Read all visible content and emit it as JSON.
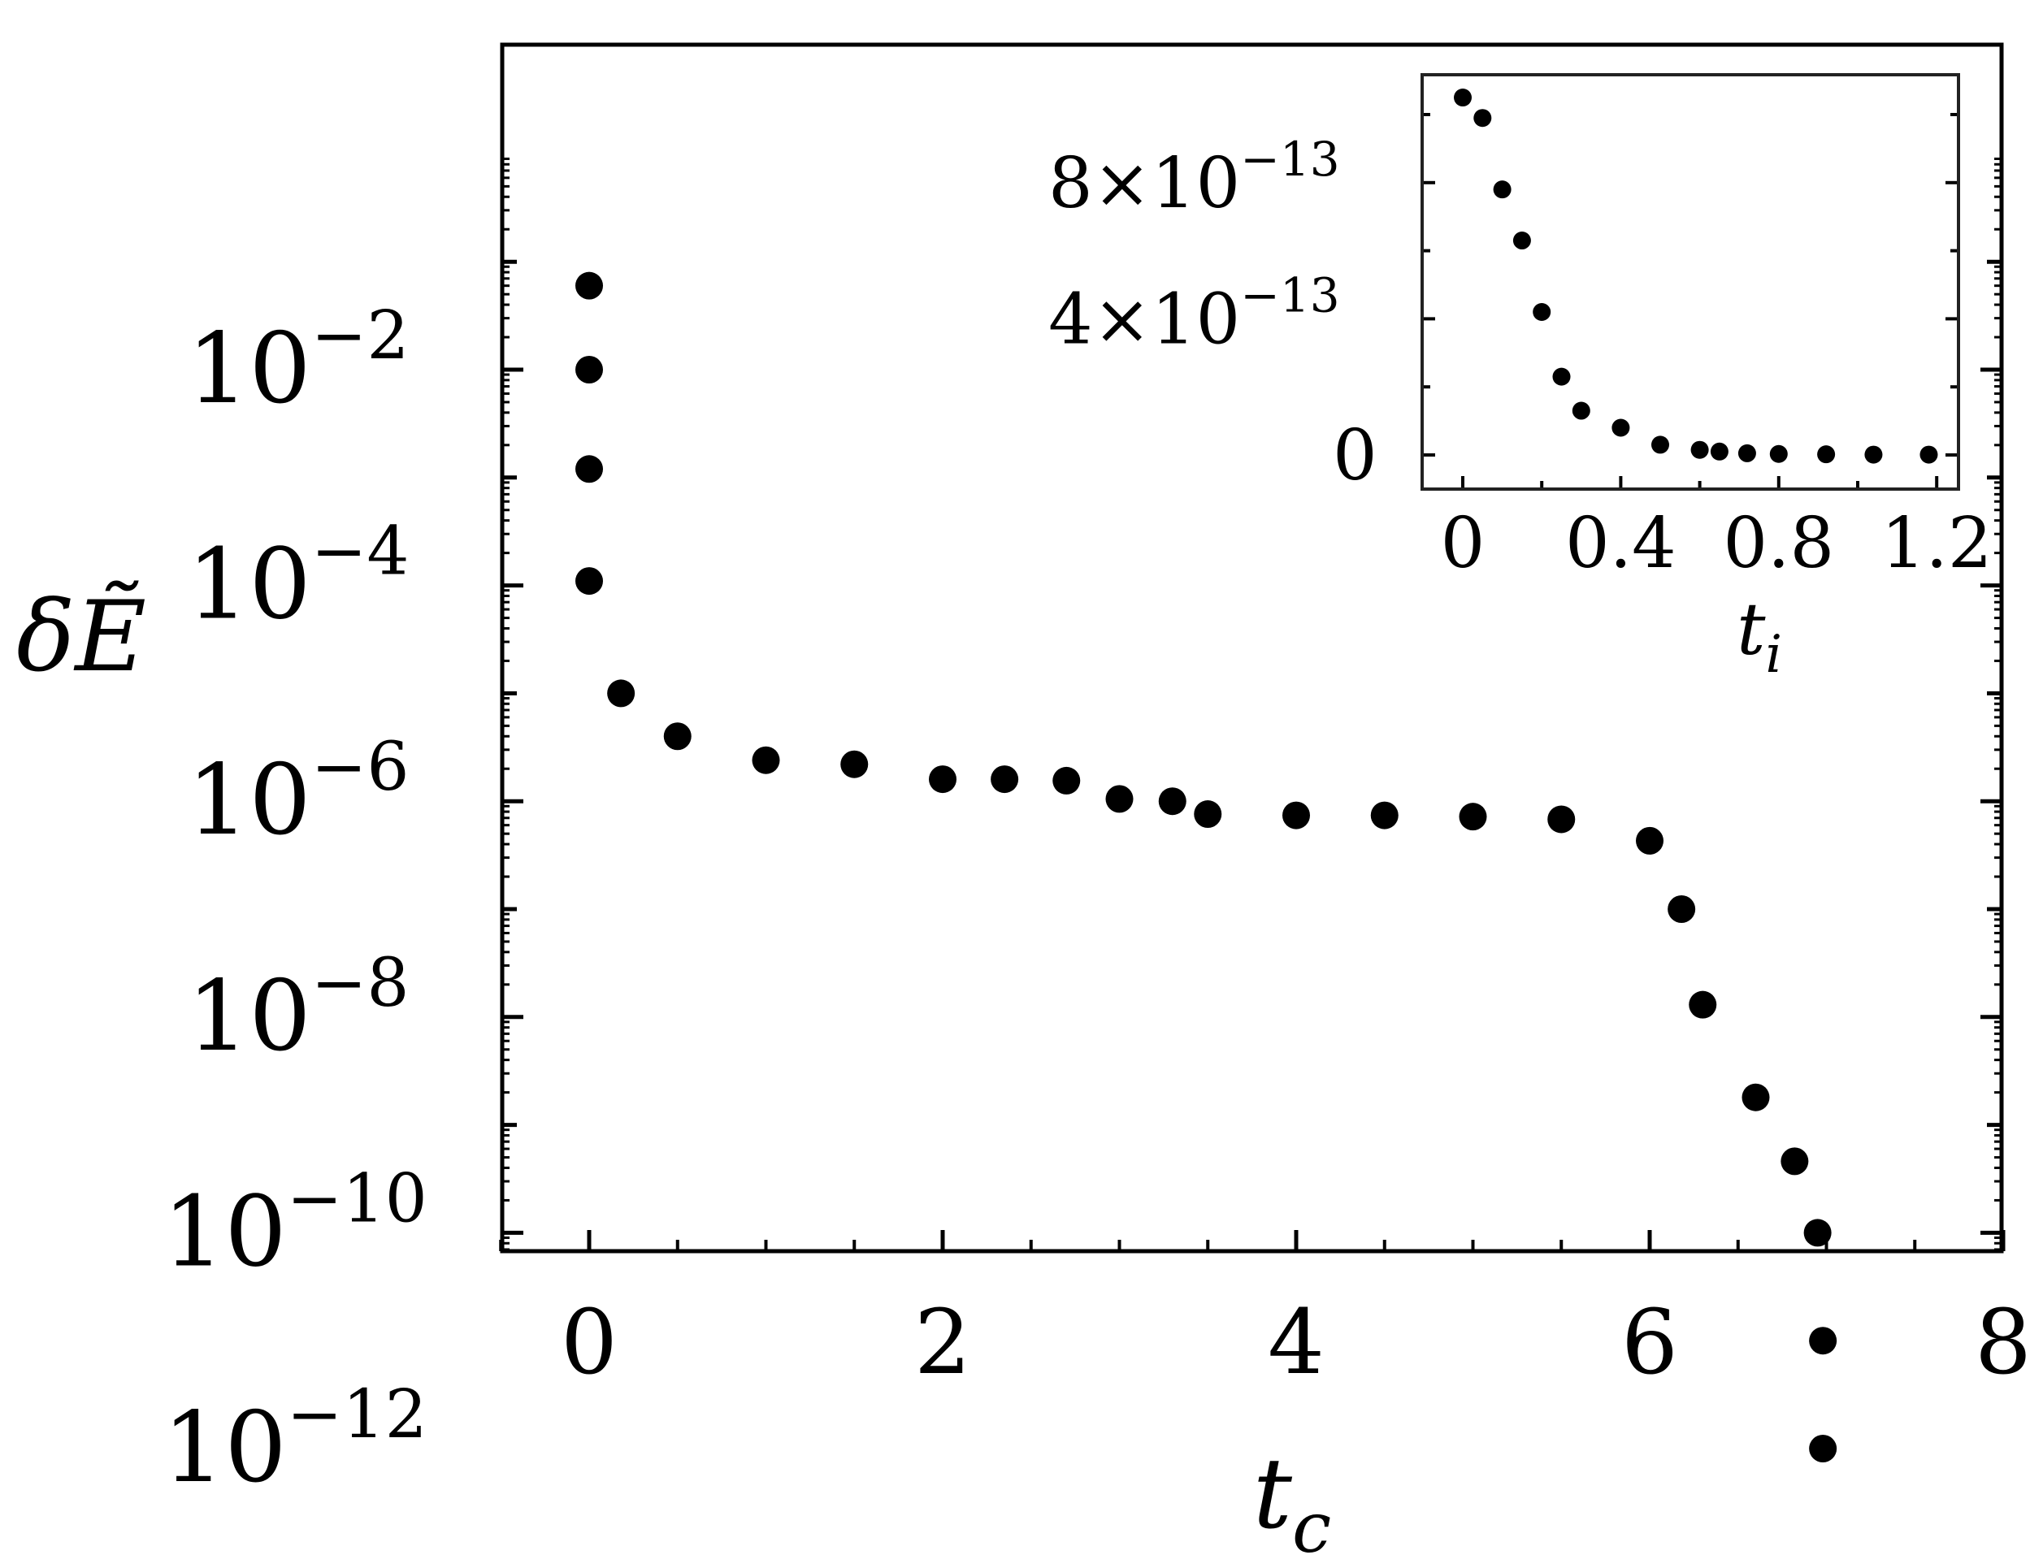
{
  "chart_data": [
    {
      "id": "main",
      "type": "scatter",
      "xlabel": "t",
      "xlabel_sub": "c",
      "ylabel": "δẼ",
      "y_scale": "log",
      "xlim": [
        -0.5,
        8
      ],
      "ylim_log10": [
        -12.1,
        -0.8
      ],
      "x_ticks": [
        {
          "value": 0,
          "label": "0"
        },
        {
          "value": 2,
          "label": "2"
        },
        {
          "value": 4,
          "label": "4"
        },
        {
          "value": 6,
          "label": "6"
        },
        {
          "value": 8,
          "label": "8"
        }
      ],
      "y_ticks": [
        {
          "value": -2,
          "label": "10",
          "exp": "−2"
        },
        {
          "value": -4,
          "label": "10",
          "exp": "−4"
        },
        {
          "value": -6,
          "label": "10",
          "exp": "−6"
        },
        {
          "value": -8,
          "label": "10",
          "exp": "−8"
        },
        {
          "value": -10,
          "label": "10",
          "exp": "−10"
        },
        {
          "value": -12,
          "label": "10",
          "exp": "−12"
        }
      ],
      "series": [
        {
          "marker_color": "#000000",
          "points": [
            {
              "x": 0.0,
              "y": 0.06
            },
            {
              "x": 0.0,
              "y": 0.01
            },
            {
              "x": 0.0,
              "y": 0.0012
            },
            {
              "x": 0.0,
              "y": 0.00011
            },
            {
              "x": 0.18,
              "y": 1e-05
            },
            {
              "x": 0.5,
              "y": 4e-06
            },
            {
              "x": 1.0,
              "y": 2.4e-06
            },
            {
              "x": 1.5,
              "y": 2.2e-06
            },
            {
              "x": 2.0,
              "y": 1.6e-06
            },
            {
              "x": 2.35,
              "y": 1.6e-06
            },
            {
              "x": 2.7,
              "y": 1.55e-06
            },
            {
              "x": 3.0,
              "y": 1.05e-06
            },
            {
              "x": 3.3,
              "y": 1e-06
            },
            {
              "x": 3.5,
              "y": 7.6e-07
            },
            {
              "x": 4.0,
              "y": 7.4e-07
            },
            {
              "x": 4.5,
              "y": 7.4e-07
            },
            {
              "x": 5.0,
              "y": 7.2e-07
            },
            {
              "x": 5.5,
              "y": 6.8e-07
            },
            {
              "x": 6.0,
              "y": 4.3e-07
            },
            {
              "x": 6.18,
              "y": 1e-07
            },
            {
              "x": 6.3,
              "y": 1.3e-08
            },
            {
              "x": 6.6,
              "y": 1.8e-09
            },
            {
              "x": 6.82,
              "y": 4.6e-10
            },
            {
              "x": 6.95,
              "y": 1e-10
            },
            {
              "x": 6.98,
              "y": 1e-11
            },
            {
              "x": 6.98,
              "y": 1e-12
            }
          ]
        }
      ]
    },
    {
      "id": "inset",
      "type": "scatter",
      "xlabel": "t",
      "xlabel_sub": "i",
      "xlim": [
        -0.1,
        1.3
      ],
      "ylim": [
        -1.1e-13,
        1.12e-12
      ],
      "x_ticks": [
        {
          "value": 0,
          "label": "0"
        },
        {
          "value": 0.4,
          "label": "0.4"
        },
        {
          "value": 0.8,
          "label": "0.8"
        },
        {
          "value": 1.2,
          "label": "1.2"
        }
      ],
      "y_ticks": [
        {
          "value": 0,
          "label": "0",
          "exp": ""
        },
        {
          "value": 4e-13,
          "label": "4×10",
          "exp": "−13"
        },
        {
          "value": 8e-13,
          "label": "8×10",
          "exp": "−13"
        }
      ],
      "series": [
        {
          "marker_color": "#000000",
          "points": [
            {
              "x": 0.0,
              "y": 1.05e-12
            },
            {
              "x": 0.05,
              "y": 9.9e-13
            },
            {
              "x": 0.1,
              "y": 7.8e-13
            },
            {
              "x": 0.15,
              "y": 6.3e-13
            },
            {
              "x": 0.2,
              "y": 4.2e-13
            },
            {
              "x": 0.25,
              "y": 2.3e-13
            },
            {
              "x": 0.3,
              "y": 1.3e-13
            },
            {
              "x": 0.4,
              "y": 8e-14
            },
            {
              "x": 0.5,
              "y": 3e-14
            },
            {
              "x": 0.6,
              "y": 1.5e-14
            },
            {
              "x": 0.65,
              "y": 1e-14
            },
            {
              "x": 0.72,
              "y": 5e-15
            },
            {
              "x": 0.8,
              "y": 3e-15
            },
            {
              "x": 0.92,
              "y": 2e-15
            },
            {
              "x": 1.04,
              "y": 1e-15
            },
            {
              "x": 1.18,
              "y": 1e-15
            }
          ]
        }
      ]
    }
  ]
}
